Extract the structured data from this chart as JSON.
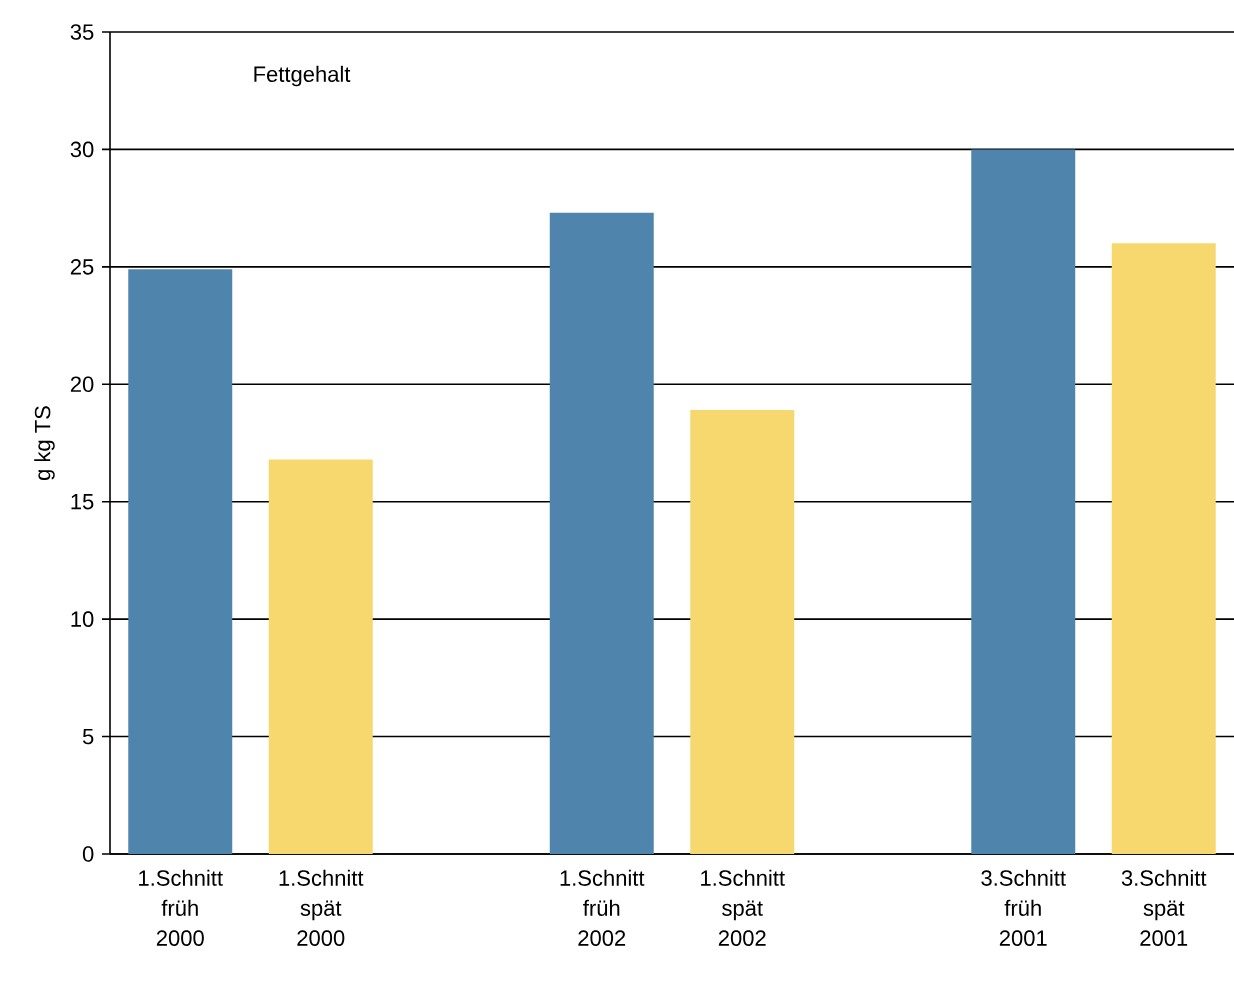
{
  "chart_data": {
    "type": "bar",
    "title": "Fettgehalt",
    "ylabel": "g kg TS",
    "categories": [
      "1.Schnitt früh 2000",
      "1.Schnitt spät 2000",
      null,
      "1.Schnitt früh 2002",
      "1.Schnitt spät 2002",
      null,
      "3.Schnitt früh 2001",
      "3.Schnitt spät 2001"
    ],
    "values": [
      24.9,
      16.8,
      null,
      27.3,
      18.9,
      null,
      30.0,
      26.0
    ],
    "colors": [
      "#4f84ad",
      "#f7d86e",
      null,
      "#4f84ad",
      "#f7d86e",
      null,
      "#4f84ad",
      "#f7d86e"
    ],
    "ylim": [
      0,
      35
    ],
    "yticks": [
      0,
      5,
      10,
      15,
      20,
      25,
      30,
      35
    ],
    "grid": "y"
  }
}
